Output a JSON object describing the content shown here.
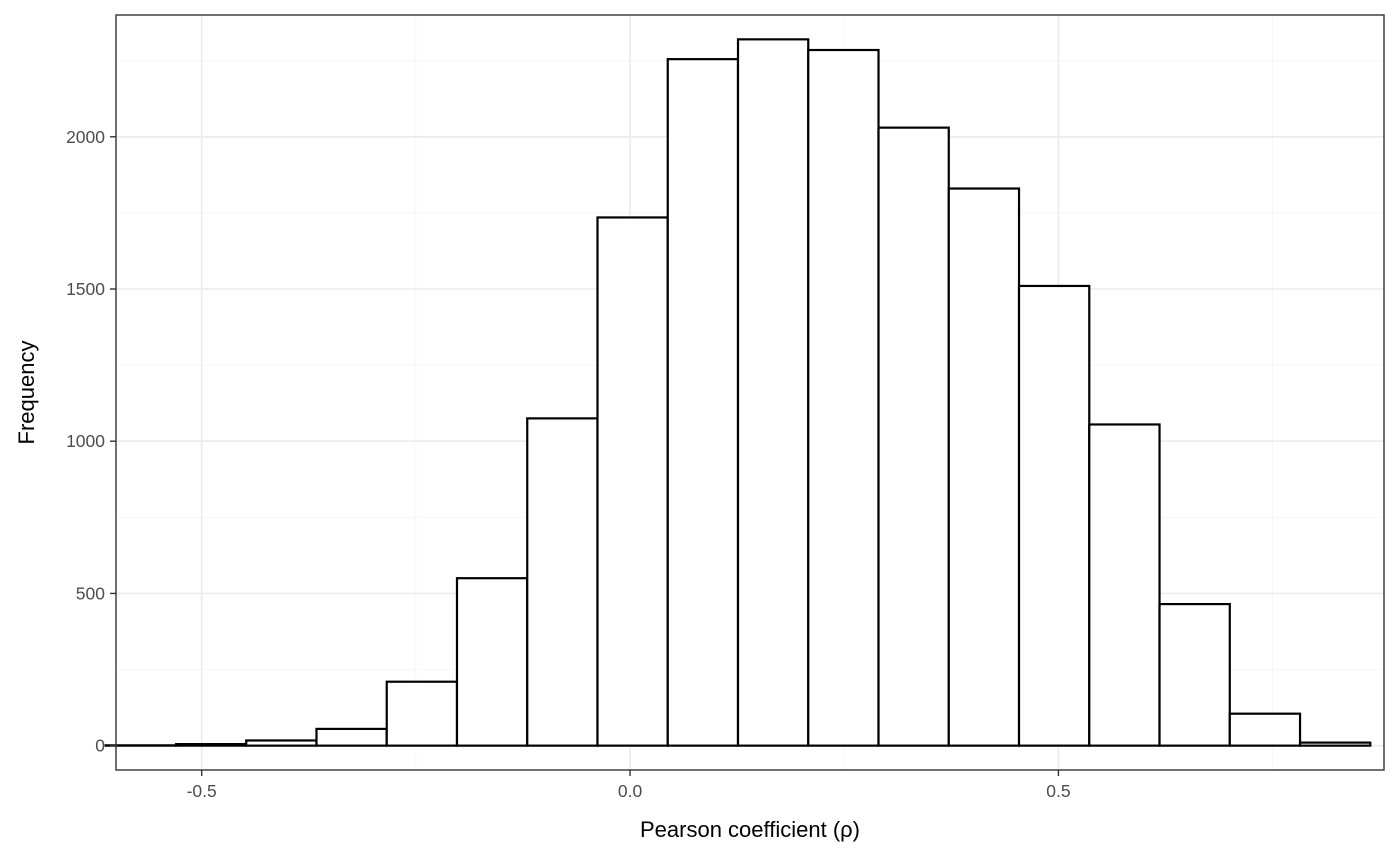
{
  "chart_data": {
    "type": "bar",
    "subtype": "histogram",
    "title": "",
    "xlabel": "Pearson coefficient (ρ)",
    "ylabel": "Frequency",
    "xlim": [
      -0.6,
      0.88
    ],
    "ylim": [
      -80,
      2400
    ],
    "x_ticks": [
      {
        "value": -0.5,
        "label": "-0.5"
      },
      {
        "value": 0.0,
        "label": "0.0"
      },
      {
        "value": 0.5,
        "label": "0.5"
      }
    ],
    "y_ticks": [
      {
        "value": 0,
        "label": "0"
      },
      {
        "value": 500,
        "label": "500"
      },
      {
        "value": 1000,
        "label": "1000"
      },
      {
        "value": 1500,
        "label": "1500"
      },
      {
        "value": 2000,
        "label": "2000"
      }
    ],
    "x_minor_ticks": [
      -0.25,
      0.25,
      0.75
    ],
    "y_minor_ticks": [
      250,
      750,
      1250,
      1750,
      2250
    ],
    "grid": true,
    "legend": "none",
    "bins": [
      {
        "x0": -0.612,
        "x1": -0.53,
        "count": 1
      },
      {
        "x0": -0.53,
        "x1": -0.448,
        "count": 5
      },
      {
        "x0": -0.448,
        "x1": -0.366,
        "count": 17
      },
      {
        "x0": -0.366,
        "x1": -0.284,
        "count": 55
      },
      {
        "x0": -0.284,
        "x1": -0.202,
        "count": 210
      },
      {
        "x0": -0.202,
        "x1": -0.12,
        "count": 550
      },
      {
        "x0": -0.12,
        "x1": -0.038,
        "count": 1075
      },
      {
        "x0": -0.038,
        "x1": 0.044,
        "count": 1735
      },
      {
        "x0": 0.044,
        "x1": 0.126,
        "count": 2255
      },
      {
        "x0": 0.126,
        "x1": 0.208,
        "count": 2320
      },
      {
        "x0": 0.208,
        "x1": 0.29,
        "count": 2285
      },
      {
        "x0": 0.29,
        "x1": 0.372,
        "count": 2030
      },
      {
        "x0": 0.372,
        "x1": 0.454,
        "count": 1830
      },
      {
        "x0": 0.454,
        "x1": 0.536,
        "count": 1510
      },
      {
        "x0": 0.536,
        "x1": 0.618,
        "count": 1055
      },
      {
        "x0": 0.618,
        "x1": 0.7,
        "count": 465
      },
      {
        "x0": 0.7,
        "x1": 0.782,
        "count": 105
      },
      {
        "x0": 0.782,
        "x1": 0.864,
        "count": 10
      }
    ],
    "colors": {
      "bar_fill": "#ffffff",
      "bar_outline": "#000000",
      "panel_border": "#333333",
      "grid_major": "#ebebeb",
      "grid_minor": "#f3f3f3",
      "tick_label": "#4d4d4d",
      "axis_title": "#000000"
    }
  }
}
